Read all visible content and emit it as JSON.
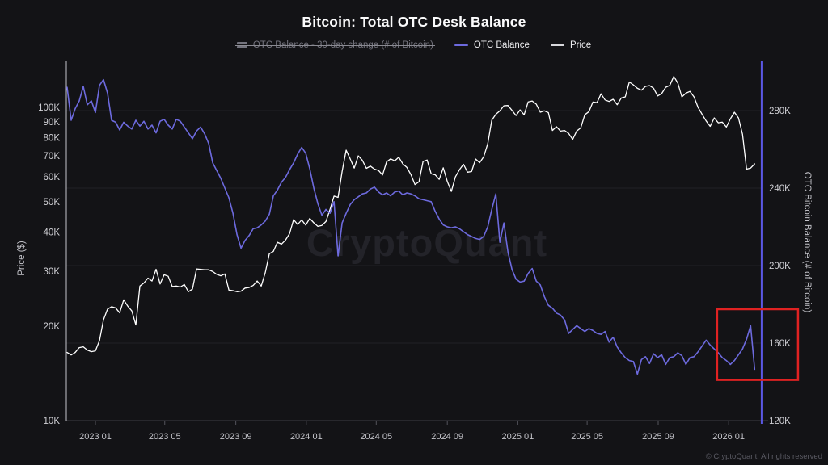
{
  "header": {
    "title": "Bitcoin: Total OTC Desk Balance"
  },
  "legend": [
    {
      "label": "OTC Balance - 30-day change (# of Bitcoin)",
      "color": "#74747e",
      "swatch": "bars",
      "disabled": true
    },
    {
      "label": "OTC Balance",
      "color": "#6d6ade",
      "swatch": "line",
      "disabled": false
    },
    {
      "label": "Price",
      "color": "#d8d8dc",
      "swatch": "line",
      "disabled": false
    }
  ],
  "watermark": "CryptoQuant",
  "footer": {
    "copyright": "© CryptoQuant. All rights reserved"
  },
  "colors": {
    "background": "#131316",
    "grid": "#202025",
    "left_axis_line": "#c6c6cc",
    "bottom_axis_line": "#3d3d44",
    "tick_text": "#cfcfd4",
    "axis_title_text": "#c2c2c8",
    "watermark_text": "#232329",
    "price_line": "#ffffff",
    "otc_line": "#6d6ade",
    "current_time_line": "#5b58e4",
    "highlight_box": "#e02222"
  },
  "chart_data": {
    "type": "line",
    "title": "Bitcoin: Total OTC Desk Balance",
    "grid": "horizontal-faint",
    "legend_position": "top",
    "x_start": "2022-11-13",
    "x_interval_days": 7,
    "x_tick_labels": [
      "2023 01",
      "2023 05",
      "2023 09",
      "2024 01",
      "2024 05",
      "2024 09",
      "2025 01",
      "2025 05",
      "2025 09",
      "2026 01"
    ],
    "left_axis": {
      "label": "Price ($)",
      "scale": "log",
      "ticks": [
        "10K",
        "20K",
        "30K",
        "40K",
        "50K",
        "60K",
        "70K",
        "80K",
        "90K",
        "100K"
      ],
      "tick_values": [
        10000,
        20000,
        30000,
        40000,
        50000,
        60000,
        70000,
        80000,
        90000,
        100000
      ],
      "range": [
        10000,
        138000
      ]
    },
    "right_axis": {
      "label": "OTC Bitcoin Balance (# of Bitcoin)",
      "scale": "linear",
      "ticks": [
        "120K",
        "160K",
        "200K",
        "240K",
        "280K"
      ],
      "tick_values": [
        120000,
        160000,
        200000,
        240000,
        280000
      ],
      "range": [
        120000,
        305000
      ]
    },
    "values_scale": 1000,
    "series": [
      {
        "name": "Price",
        "axis": "left",
        "color": "#ffffff",
        "unit": "USD",
        "values": [
          16.5,
          16.2,
          16.5,
          17.1,
          17.2,
          16.8,
          16.6,
          16.7,
          18.0,
          21.0,
          22.7,
          23.1,
          22.9,
          22.1,
          24.3,
          23.2,
          22.4,
          20.2,
          26.9,
          27.5,
          28.5,
          27.9,
          30.4,
          27.3,
          29.2,
          28.9,
          26.8,
          26.9,
          26.7,
          27.2,
          25.8,
          26.3,
          30.5,
          30.4,
          30.3,
          30.3,
          29.9,
          29.3,
          29.0,
          29.4,
          26.1,
          26.0,
          25.8,
          25.9,
          26.5,
          26.6,
          27.0,
          27.9,
          26.9,
          29.7,
          34.1,
          34.7,
          37.1,
          36.6,
          37.7,
          39.5,
          43.8,
          42.3,
          43.7,
          42.1,
          44.2,
          42.8,
          41.7,
          42.0,
          43.2,
          47.2,
          52.1,
          51.6,
          62.4,
          73.0,
          68.5,
          64.0,
          70.0,
          67.8,
          63.9,
          64.9,
          63.5,
          62.9,
          60.8,
          67.0,
          68.5,
          67.5,
          69.3,
          66.0,
          64.3,
          61.0,
          56.7,
          57.9,
          67.2,
          67.9,
          61.4,
          60.9,
          58.9,
          64.1,
          58.0,
          53.9,
          60.0,
          63.2,
          65.8,
          62.1,
          62.4,
          68.4,
          66.6,
          69.5,
          76.5,
          91.0,
          95.0,
          97.5,
          101.2,
          101.4,
          97.8,
          94.2,
          98.2,
          94.7,
          104.1,
          104.8,
          102.4,
          96.5,
          97.5,
          96.2,
          84.4,
          86.8,
          84.0,
          84.4,
          82.6,
          79.0,
          84.0,
          86.0,
          94.7,
          96.9,
          104.0,
          103.5,
          110.5,
          105.6,
          104.4,
          106.1,
          102.0,
          107.1,
          108.0,
          120.5,
          118.0,
          115.0,
          113.5,
          116.7,
          117.4,
          115.1,
          108.8,
          110.7,
          115.9,
          117.5,
          125.5,
          119.5,
          108.0,
          111.0,
          112.5,
          108.0,
          100.0,
          95.0,
          90.5,
          87.0,
          92.5,
          89.3,
          89.7,
          86.5,
          92.0,
          96.5,
          92.5,
          82.0,
          63.5,
          64.0,
          66.0
        ]
      },
      {
        "name": "OTC Balance",
        "axis": "right",
        "color": "#6d6ade",
        "unit": "BTC",
        "values": [
          292,
          275,
          281,
          285,
          292.5,
          283,
          285,
          279,
          293,
          296,
          289,
          275,
          274,
          270,
          274,
          272,
          270.5,
          275,
          272,
          274.5,
          270.5,
          272.5,
          268.5,
          274.5,
          275.5,
          272.5,
          270.5,
          275.5,
          274.5,
          271.5,
          268.5,
          265.5,
          269.5,
          271.5,
          268,
          263,
          253,
          249,
          245,
          240,
          235,
          227,
          216,
          209,
          213,
          215.5,
          219,
          219.5,
          221,
          223,
          226.5,
          236,
          239,
          243,
          245.5,
          249.5,
          253,
          257.5,
          261,
          258,
          250,
          240,
          232,
          226,
          229,
          227,
          233,
          205,
          222,
          227,
          231.5,
          234,
          235.5,
          237,
          237.5,
          239.5,
          240.5,
          238,
          236.5,
          237.5,
          236,
          238,
          238.5,
          236.5,
          237.5,
          237,
          236,
          234.5,
          234,
          233.5,
          233,
          228,
          224,
          221,
          220,
          219.5,
          220,
          219,
          217.5,
          216,
          215,
          214,
          213.5,
          215,
          220,
          229,
          237,
          212,
          222,
          207,
          198,
          193,
          191.5,
          192,
          196,
          198.5,
          192,
          190,
          184,
          179.5,
          178,
          175.5,
          174.5,
          172,
          165,
          167,
          169,
          167.5,
          166,
          167.5,
          166.5,
          165,
          164.5,
          166,
          160.5,
          163,
          158,
          155,
          152.5,
          151,
          150.5,
          144,
          151.5,
          153,
          149.5,
          154.5,
          152.5,
          154,
          149,
          152.5,
          153,
          155,
          153.5,
          149,
          152.5,
          153,
          155.5,
          158.5,
          161.5,
          159,
          157,
          155,
          152.5,
          151,
          149,
          151,
          154,
          157,
          162,
          169,
          146.5
        ]
      }
    ],
    "annotations": {
      "highlight_box": {
        "date_from": "2025-12-12",
        "date_to": "2026-05-01",
        "balance_from": 141000,
        "balance_to": 177500,
        "color": "#e02222"
      },
      "current_time_line": {
        "date": "2026-02-27",
        "color": "#5b58e4"
      }
    }
  }
}
